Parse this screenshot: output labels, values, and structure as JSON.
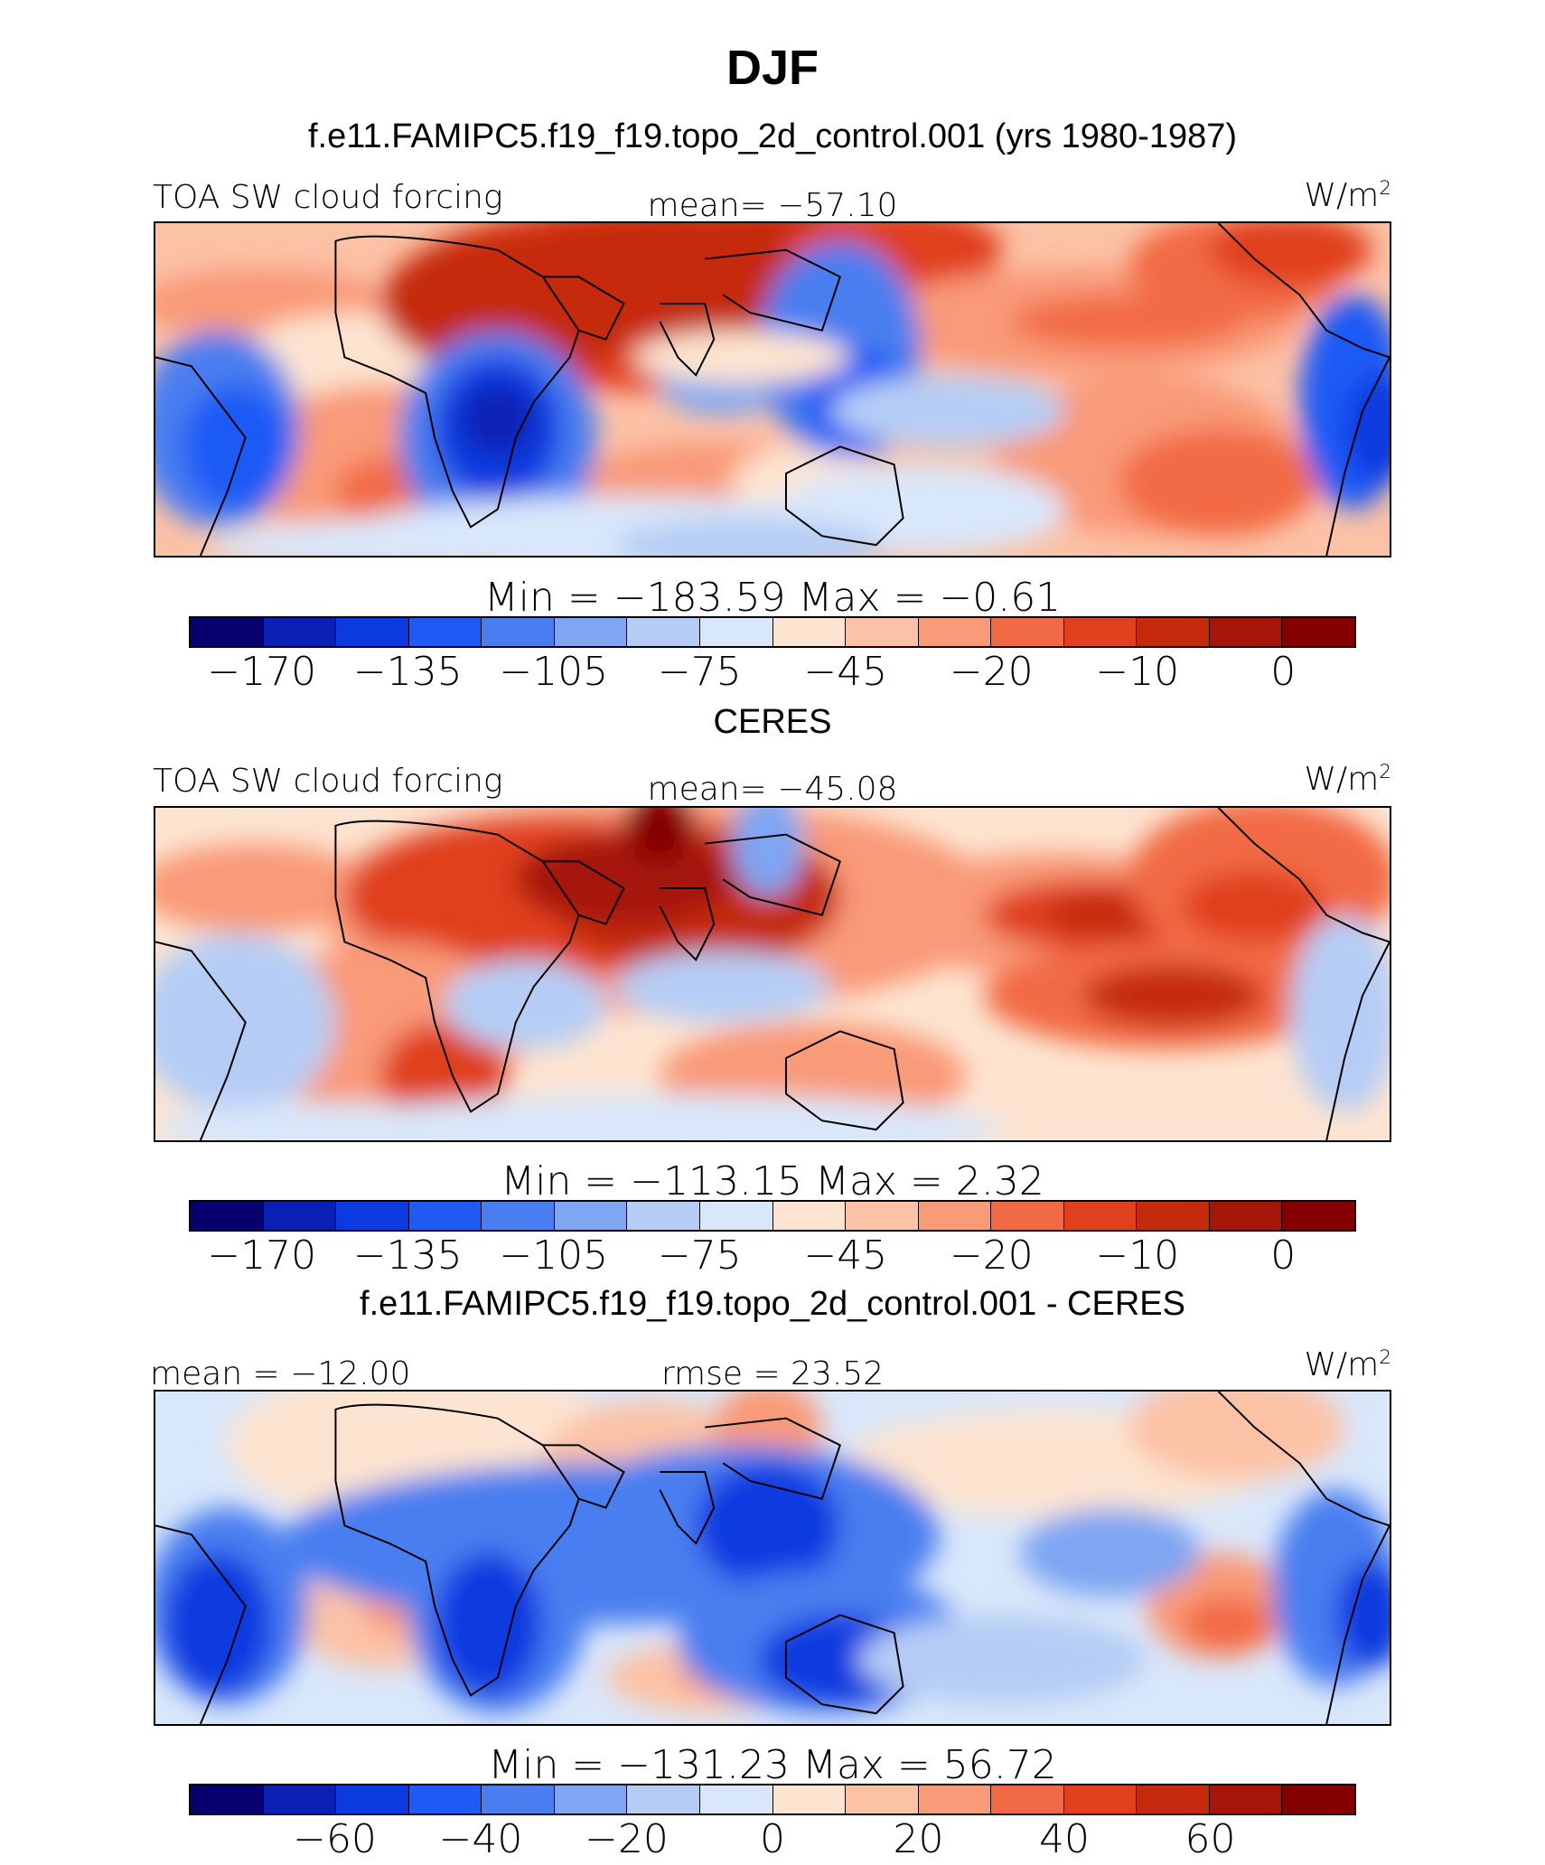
{
  "season": "DJF",
  "panels": [
    {
      "title": "f.e11.FAMIPC5.f19_f19.topo_2d_control.001 (yrs 1980-1987)",
      "left_label": "TOA SW cloud forcing",
      "center_label": "mean= −57.10",
      "units": "W/m",
      "units_sup": "2",
      "stats": "Min  =  −183.59  Max  =    −0.61",
      "colorbar_ticks": [
        "−170",
        "−135",
        "−105",
        "−75",
        "−45",
        "−20",
        "−10",
        "0"
      ]
    },
    {
      "title": "CERES",
      "left_label": "TOA SW cloud forcing",
      "center_label": "mean= −45.08",
      "units": "W/m",
      "units_sup": "2",
      "stats": "Min  =  −113.15  Max  =     2.32",
      "colorbar_ticks": [
        "−170",
        "−135",
        "−105",
        "−75",
        "−45",
        "−20",
        "−10",
        "0"
      ]
    },
    {
      "title": "f.e11.FAMIPC5.f19_f19.topo_2d_control.001 - CERES",
      "left_label": "mean = −12.00",
      "center_label": "rmse =   23.52",
      "units": "W/m",
      "units_sup": "2",
      "stats": "Min  =  −131.23  Max  =   56.72",
      "colorbar_ticks": [
        "−60",
        "−40",
        "−20",
        "0",
        "20",
        "40",
        "60"
      ]
    }
  ],
  "colors": {
    "palette": [
      "#08006e",
      "#0a20b4",
      "#0a3ae0",
      "#1f5af5",
      "#4a7ef0",
      "#7ea6f2",
      "#b5cdf5",
      "#d9e7fa",
      "#fde4d0",
      "#fcc2a6",
      "#f99a78",
      "#f26a45",
      "#e0401c",
      "#c52a0c",
      "#a51508",
      "#850000"
    ],
    "coast": "#000000"
  }
}
